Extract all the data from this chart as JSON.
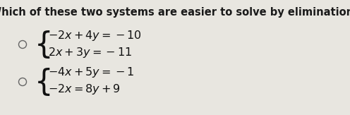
{
  "title": "Which of these two systems are easier to solve by elimination?",
  "title_fontsize": 10.5,
  "title_color": "#1a1a1a",
  "background_color": "#e8e6e0",
  "system1_line1": "$-2x + 4y = -10$",
  "system1_line2": "$2x + 3y = -11$",
  "system2_line1": "$-4x + 5y = -1$",
  "system2_line2": "$-2x = 8y + 9$",
  "radio_color": "#666666",
  "eq_fontsize": 11.5,
  "eq_color": "#111111",
  "brace_fontsize": 30
}
